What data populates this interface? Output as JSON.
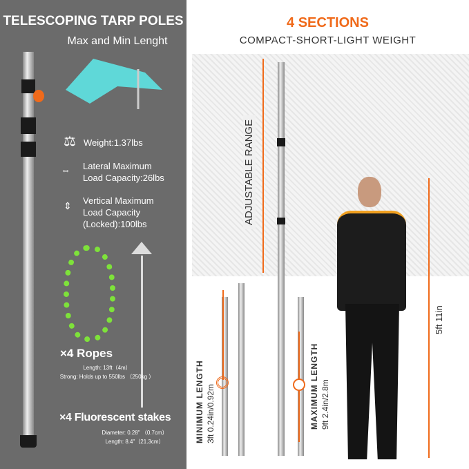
{
  "left": {
    "title": "TELESCOPING TARP POLES",
    "subtitle": "Max and Min Lenght",
    "weight": "Weight:1.37lbs",
    "lateral_line1": "Lateral Maximum",
    "lateral_line2": "Load Capacity:26lbs",
    "vertical_line1": "Vertical Maximum",
    "vertical_line2": "Load Capacity",
    "vertical_line3": "(Locked):100lbs",
    "ropes_title": "×4 Ropes",
    "ropes_length": "Length: 13ft（4m）",
    "ropes_strong": "Strong: Holds up to 550lbs （250kg ）",
    "stakes_title": "×4 Fluorescent stakes",
    "stakes_diameter": "Diameter: 0.28\" （0.7cm）",
    "stakes_length": "Length: 8.4\"（21.3cm）"
  },
  "right": {
    "title": "4 SECTIONS",
    "subtitle": "COMPACT-SHORT-LIGHT WEIGHT",
    "adjustable": "ADJUSTABLE RANGE",
    "min_label": "MINIMUM LENGTH",
    "min_value": "3ft 0.24in/0.92m",
    "max_label": "MAXIMUM LENGTH",
    "max_value": "9ft 2.4in/2.8m",
    "person_height": "5ft 11in"
  },
  "colors": {
    "accent": "#f06a1a",
    "panel": "#6b6b6b",
    "rope": "#7ee23a",
    "tarp": "#5fd8d8"
  }
}
